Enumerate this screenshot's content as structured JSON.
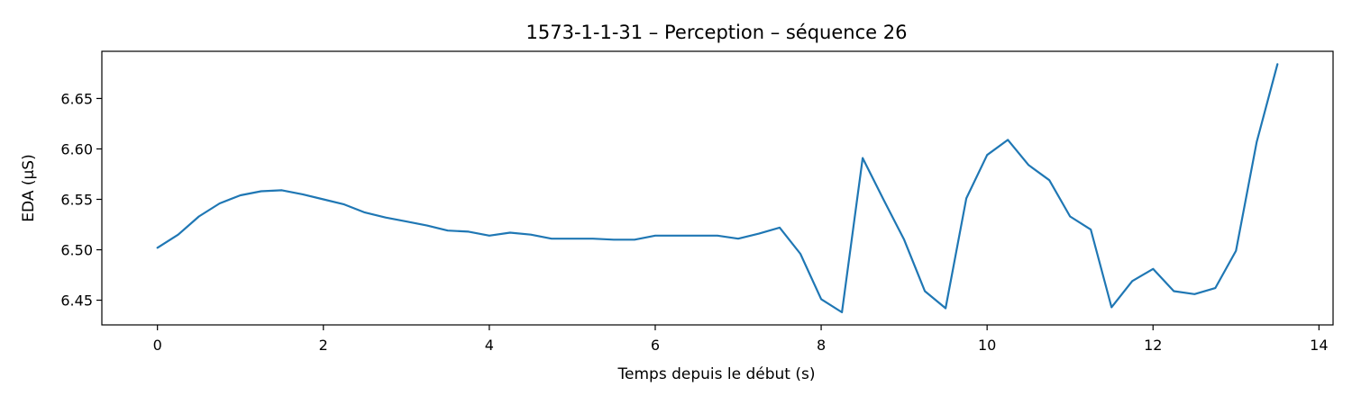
{
  "chart_data": {
    "type": "line",
    "title": "1573-1-1-31 – Perception – séquence 26",
    "xlabel": "Temps depuis le début (s)",
    "ylabel": "EDA (µS)",
    "xlim": [
      -0.67,
      14.17
    ],
    "ylim": [
      6.4255,
      6.6968
    ],
    "xticks": [
      0,
      2,
      4,
      6,
      8,
      10,
      12,
      14
    ],
    "yticks": [
      6.45,
      6.5,
      6.55,
      6.6,
      6.65
    ],
    "grid": false,
    "legend": "none",
    "line_color": "#1f77b4",
    "series": [
      {
        "x": [
          0,
          0.25,
          0.5,
          0.75,
          1.0,
          1.25,
          1.5,
          1.75,
          2.0,
          2.25,
          2.5,
          2.75,
          3.0,
          3.25,
          3.5,
          3.75,
          4.0,
          4.25,
          4.5,
          4.75,
          5.0,
          5.25,
          5.5,
          5.75,
          6.0,
          6.25,
          6.5,
          6.75,
          7.0,
          7.25,
          7.5,
          7.75,
          8.0,
          8.25,
          8.5,
          8.75,
          9.0,
          9.25,
          9.5,
          9.75,
          10.0,
          10.25,
          10.5,
          10.75,
          11.0,
          11.25,
          11.5,
          11.75,
          12.0,
          12.25,
          12.5,
          12.75,
          13.0,
          13.25,
          13.5
        ],
        "y": [
          6.502,
          6.515,
          6.533,
          6.546,
          6.554,
          6.558,
          6.559,
          6.555,
          6.55,
          6.545,
          6.537,
          6.532,
          6.528,
          6.524,
          6.519,
          6.518,
          6.514,
          6.517,
          6.515,
          6.511,
          6.511,
          6.511,
          6.51,
          6.51,
          6.514,
          6.514,
          6.514,
          6.514,
          6.511,
          6.516,
          6.522,
          6.496,
          6.451,
          6.438,
          6.591,
          6.55,
          6.51,
          6.459,
          6.442,
          6.551,
          6.594,
          6.609,
          6.584,
          6.569,
          6.533,
          6.52,
          6.443,
          6.469,
          6.481,
          6.459,
          6.456,
          6.462,
          6.499,
          6.607,
          6.684
        ]
      }
    ]
  }
}
